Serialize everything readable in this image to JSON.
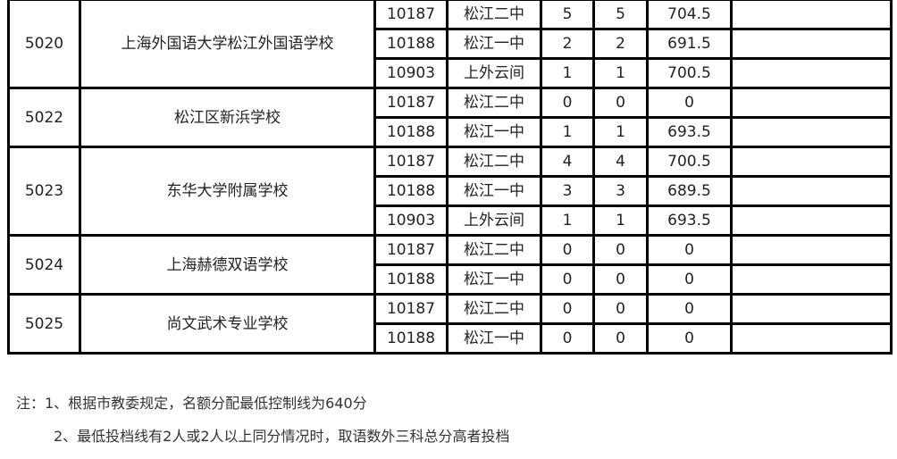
{
  "groups": [
    {
      "id": "5020",
      "school": "上海外国语大学松江外国语学校",
      "rows": [
        {
          "code": "10187",
          "name": "松江二中",
          "a": "5",
          "b": "5",
          "score": "704.5"
        },
        {
          "code": "10188",
          "name": "松江一中",
          "a": "2",
          "b": "2",
          "score": "691.5"
        },
        {
          "code": "10903",
          "name": "上外云间",
          "a": "1",
          "b": "1",
          "score": "700.5"
        }
      ]
    },
    {
      "id": "5022",
      "school": "松江区新浜学校",
      "rows": [
        {
          "code": "10187",
          "name": "松江二中",
          "a": "0",
          "b": "0",
          "score": "0"
        },
        {
          "code": "10188",
          "name": "松江一中",
          "a": "1",
          "b": "1",
          "score": "693.5"
        }
      ]
    },
    {
      "id": "5023",
      "school": "东华大学附属学校",
      "rows": [
        {
          "code": "10187",
          "name": "松江二中",
          "a": "4",
          "b": "4",
          "score": "700.5"
        },
        {
          "code": "10188",
          "name": "松江一中",
          "a": "3",
          "b": "3",
          "score": "689.5"
        },
        {
          "code": "10903",
          "name": "上外云间",
          "a": "1",
          "b": "1",
          "score": "693.5"
        }
      ]
    },
    {
      "id": "5024",
      "school": "上海赫德双语学校",
      "rows": [
        {
          "code": "10187",
          "name": "松江二中",
          "a": "0",
          "b": "0",
          "score": "0"
        },
        {
          "code": "10188",
          "name": "松江一中",
          "a": "0",
          "b": "0",
          "score": "0"
        }
      ]
    },
    {
      "id": "5025",
      "school": "尚文武术专业学校",
      "rows": [
        {
          "code": "10187",
          "name": "松江二中",
          "a": "0",
          "b": "0",
          "score": "0"
        },
        {
          "code": "10188",
          "name": "松江一中",
          "a": "0",
          "b": "0",
          "score": "0"
        }
      ]
    }
  ],
  "notes": [
    "注：1、根据市教委规定，名额分配最低控制线为640分",
    "2、最低投档线有2人或2人以上同分情况时，取语数外三科总分高者投档"
  ]
}
